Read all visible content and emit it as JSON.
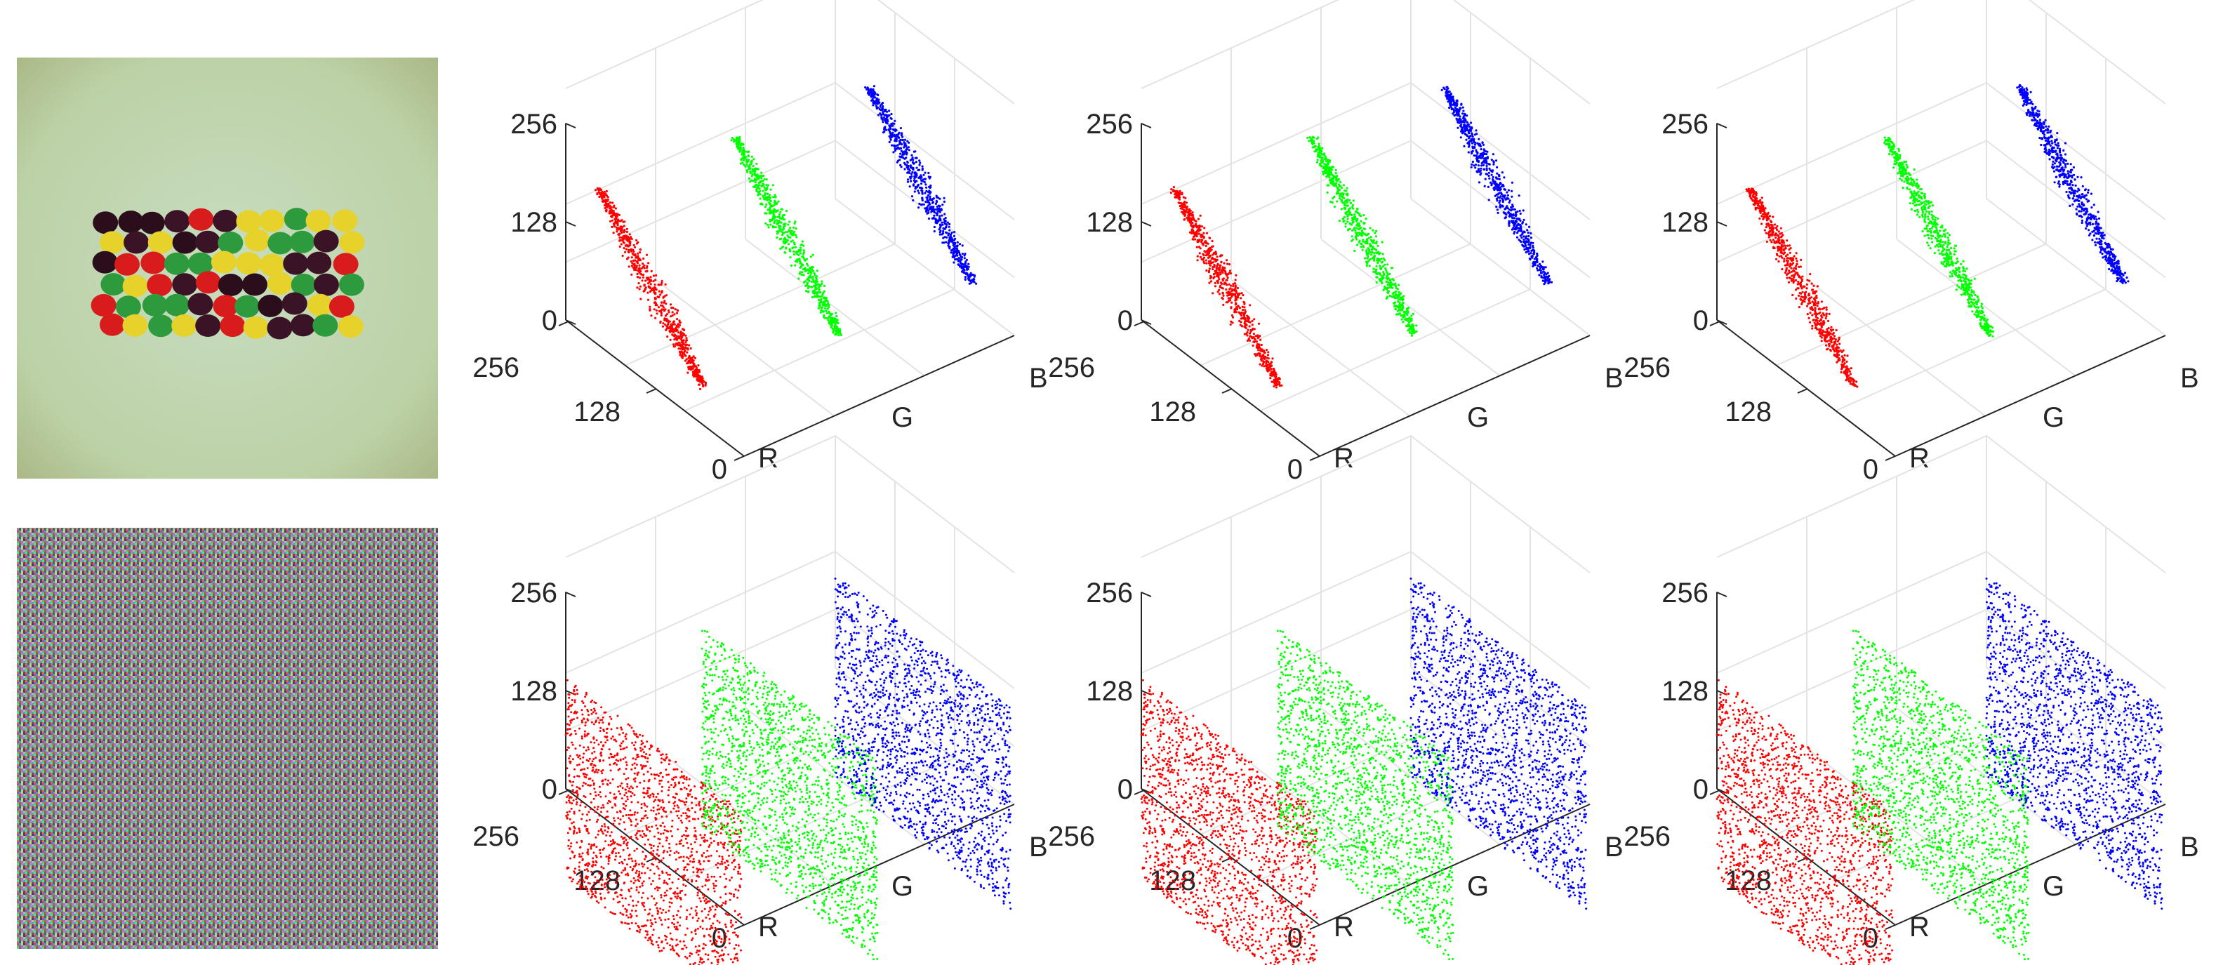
{
  "images": [
    {
      "name": "plain-image",
      "kind": "photo"
    },
    {
      "name": "cipher-image",
      "kind": "noise"
    }
  ],
  "chart_data": [
    {
      "type": "scatter3d",
      "row": "plain",
      "pattern": "correlated",
      "axes": {
        "x_label": "R",
        "y_label": "G",
        "z_label": "B"
      },
      "x_ticks": [
        "0",
        "128",
        "256"
      ],
      "z_ticks": [
        "0",
        "128",
        "256"
      ],
      "zlim": [
        0,
        256
      ],
      "series": [
        {
          "color": "#ff0000"
        },
        {
          "color": "#00ff00"
        },
        {
          "color": "#0000ff"
        }
      ]
    },
    {
      "type": "scatter3d",
      "row": "plain",
      "pattern": "correlated",
      "axes": {
        "x_label": "R",
        "y_label": "G",
        "z_label": "B"
      },
      "x_ticks": [
        "0",
        "128",
        "256"
      ],
      "z_ticks": [
        "0",
        "128",
        "256"
      ],
      "zlim": [
        0,
        256
      ],
      "series": [
        {
          "color": "#ff0000"
        },
        {
          "color": "#00ff00"
        },
        {
          "color": "#0000ff"
        }
      ]
    },
    {
      "type": "scatter3d",
      "row": "plain",
      "pattern": "correlated",
      "axes": {
        "x_label": "R",
        "y_label": "G",
        "z_label": "B"
      },
      "x_ticks": [
        "0",
        "128",
        "256"
      ],
      "z_ticks": [
        "0",
        "128",
        "256"
      ],
      "zlim": [
        0,
        256
      ],
      "series": [
        {
          "color": "#ff0000"
        },
        {
          "color": "#00ff00"
        },
        {
          "color": "#0000ff"
        }
      ]
    },
    {
      "type": "scatter3d",
      "row": "cipher",
      "pattern": "uniform",
      "axes": {
        "x_label": "R",
        "y_label": "G",
        "z_label": "B"
      },
      "x_ticks": [
        "0",
        "128",
        "256"
      ],
      "z_ticks": [
        "0",
        "128",
        "256"
      ],
      "zlim": [
        0,
        256
      ],
      "series": [
        {
          "color": "#ff0000"
        },
        {
          "color": "#00ff00"
        },
        {
          "color": "#0000ff"
        }
      ]
    },
    {
      "type": "scatter3d",
      "row": "cipher",
      "pattern": "uniform",
      "axes": {
        "x_label": "R",
        "y_label": "G",
        "z_label": "B"
      },
      "x_ticks": [
        "0",
        "128",
        "256"
      ],
      "z_ticks": [
        "0",
        "128",
        "256"
      ],
      "zlim": [
        0,
        256
      ],
      "series": [
        {
          "color": "#ff0000"
        },
        {
          "color": "#00ff00"
        },
        {
          "color": "#0000ff"
        }
      ]
    },
    {
      "type": "scatter3d",
      "row": "cipher",
      "pattern": "uniform",
      "axes": {
        "x_label": "R",
        "y_label": "G",
        "z_label": "B"
      },
      "x_ticks": [
        "0",
        "128",
        "256"
      ],
      "z_ticks": [
        "0",
        "128",
        "256"
      ],
      "zlim": [
        0,
        256
      ],
      "series": [
        {
          "color": "#ff0000"
        },
        {
          "color": "#00ff00"
        },
        {
          "color": "#0000ff"
        }
      ]
    }
  ]
}
